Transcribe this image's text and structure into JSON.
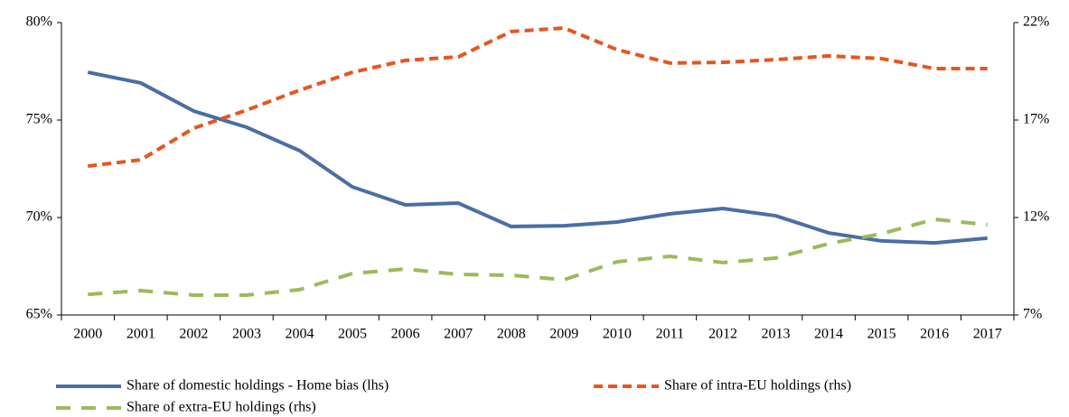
{
  "chart_data": {
    "type": "line",
    "categories": [
      "2000",
      "2001",
      "2002",
      "2003",
      "2004",
      "2005",
      "2006",
      "2007",
      "2008",
      "2009",
      "2010",
      "2011",
      "2012",
      "2013",
      "2014",
      "2015",
      "2016",
      "2017"
    ],
    "ylim": [
      65,
      80
    ],
    "yticks": [
      {
        "value": 65,
        "label": "65%"
      },
      {
        "value": 70,
        "label": "70%"
      },
      {
        "value": 75,
        "label": "75%"
      },
      {
        "value": 80,
        "label": "80%"
      }
    ],
    "y2lim": [
      7,
      22
    ],
    "y2ticks": [
      {
        "value": 7,
        "label": "7%"
      },
      {
        "value": 12,
        "label": "12%"
      },
      {
        "value": 17,
        "label": "17%"
      },
      {
        "value": 22,
        "label": "22%"
      }
    ],
    "grid": false,
    "legend": "bottom",
    "series": [
      {
        "name": "Share of domestic holdings - Home bias (lhs)",
        "color": "#4a6ea6",
        "line_style": "solid",
        "axis": "y",
        "values": [
          77.45,
          76.9,
          75.46,
          74.63,
          73.43,
          71.57,
          70.65,
          70.74,
          69.54,
          69.58,
          69.77,
          70.19,
          70.46,
          70.09,
          69.21,
          68.8,
          68.7,
          68.94
        ]
      },
      {
        "name": "Share of intra-EU holdings (rhs)",
        "color": "#e8551f",
        "line_style": "dashed",
        "axis": "y2",
        "values": [
          14.64,
          14.96,
          16.58,
          17.51,
          18.53,
          19.45,
          20.06,
          20.24,
          21.54,
          21.72,
          20.61,
          19.92,
          19.96,
          20.1,
          20.29,
          20.15,
          19.64,
          19.64
        ]
      },
      {
        "name": "Share of extra-EU holdings (rhs)",
        "color": "#9bbb59",
        "line_style": "long-dashed",
        "axis": "y2",
        "values": [
          8.06,
          8.25,
          8.02,
          8.02,
          8.3,
          9.13,
          9.36,
          9.08,
          9.04,
          8.81,
          9.73,
          10.01,
          9.69,
          9.92,
          10.66,
          11.17,
          11.91,
          11.63
        ]
      }
    ]
  }
}
